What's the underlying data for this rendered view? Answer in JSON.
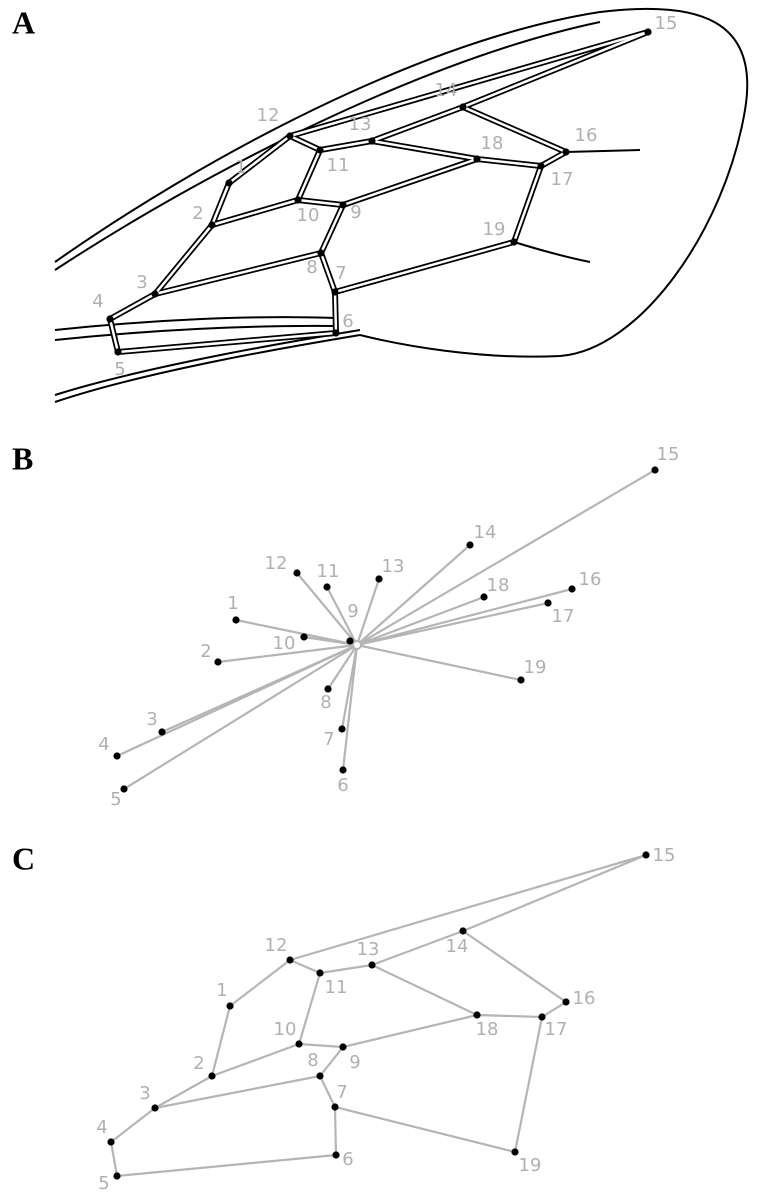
{
  "panels": [
    {
      "label": "A",
      "landmarks": [
        "1",
        "2",
        "3",
        "4",
        "5",
        "6",
        "7",
        "8",
        "9",
        "10",
        "11",
        "12",
        "13",
        "14",
        "15",
        "16",
        "17",
        "18",
        "19"
      ]
    },
    {
      "label": "B",
      "landmarks": [
        "1",
        "2",
        "3",
        "4",
        "5",
        "6",
        "7",
        "8",
        "9",
        "10",
        "11",
        "12",
        "13",
        "14",
        "15",
        "16",
        "17",
        "18",
        "19"
      ]
    },
    {
      "label": "C",
      "landmarks": [
        "1",
        "2",
        "3",
        "4",
        "5",
        "6",
        "7",
        "8",
        "9",
        "10",
        "11",
        "12",
        "13",
        "14",
        "15",
        "16",
        "17",
        "18",
        "19"
      ]
    }
  ]
}
